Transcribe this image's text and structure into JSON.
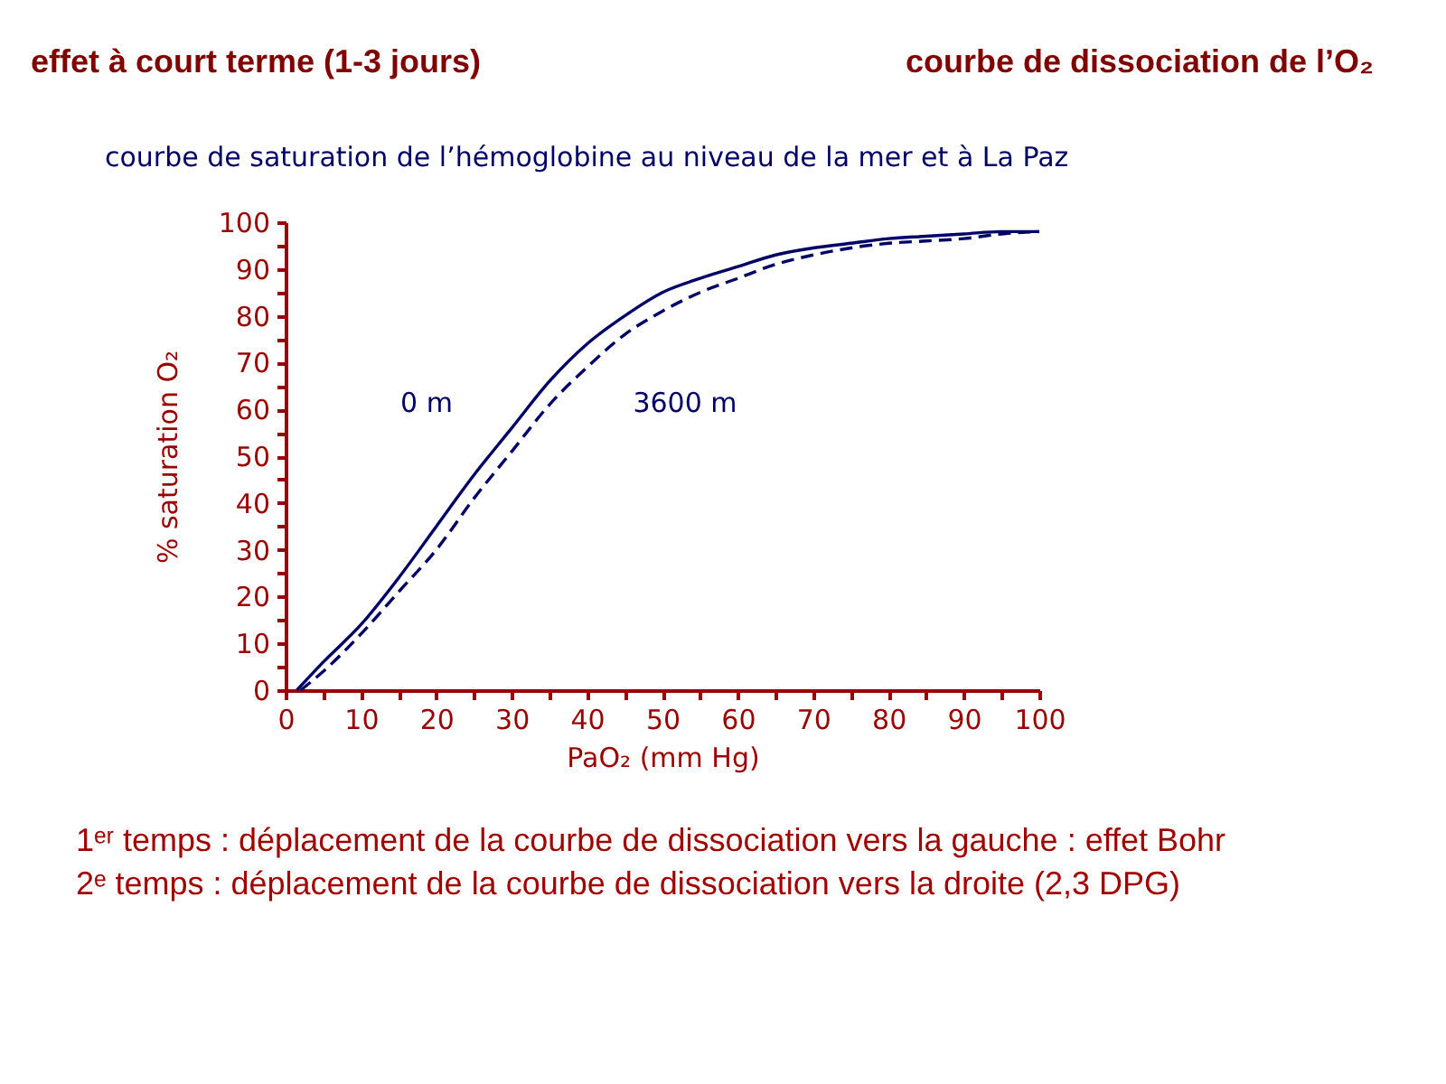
{
  "chart_data": {
    "type": "line",
    "title": "effet à court terme (1-3 jours)",
    "subtitle": "courbe de saturation de l’hémoglobine au niveau de la mer et à La Paz",
    "xlabel": "PaO₂ (mm Hg)",
    "ylabel": "% saturation O₂",
    "xlim": [
      0,
      100
    ],
    "ylim": [
      0,
      100
    ],
    "xticks": [
      0,
      {
        "value": 5,
        "label": null
      },
      10,
      {
        "value": 15,
        "label": null
      },
      20,
      {
        "value": 25,
        "label": null
      },
      30,
      {
        "value": 35,
        "label": null
      },
      40,
      {
        "value": 45,
        "label": null
      },
      50,
      {
        "value": 55,
        "label": null
      },
      60,
      {
        "value": 65,
        "label": null
      },
      70,
      {
        "value": 75,
        "label": null
      },
      80,
      {
        "value": 85,
        "label": null
      },
      90,
      {
        "value": 95,
        "label": null
      },
      100
    ],
    "yticks": [
      0,
      {
        "value": 5,
        "label": null
      },
      10,
      {
        "value": 15,
        "label": null
      },
      20,
      {
        "value": 25,
        "label": null
      },
      30,
      {
        "value": 35,
        "label": null
      },
      40,
      {
        "value": 45,
        "label": null
      },
      50,
      {
        "value": 55,
        "label": null
      },
      60,
      {
        "value": 65,
        "label": null
      },
      70,
      {
        "value": 75,
        "label": null
      },
      80,
      {
        "value": 85,
        "label": null
      },
      90,
      {
        "value": 95,
        "label": null
      },
      100
    ],
    "series": [
      {
        "color": "#000066",
        "line_style": "solid",
        "x": [
          1.5,
          5,
          10,
          15,
          20,
          25,
          30,
          35,
          40,
          45,
          50,
          55,
          60,
          65,
          70,
          75,
          80,
          85,
          90,
          95,
          100
        ],
        "values": [
          0,
          6,
          14,
          24,
          35,
          46,
          56,
          66,
          74,
          80,
          85,
          88,
          90.5,
          93,
          94.5,
          95.5,
          96.5,
          97,
          97.5,
          98,
          98
        ]
      },
      {
        "color": "#000066",
        "line_style": "dashed",
        "x": [
          2,
          5,
          10,
          15,
          20,
          25,
          30,
          35,
          40,
          45,
          50,
          55,
          60,
          65,
          70,
          75,
          80,
          85,
          90,
          95,
          100
        ],
        "values": [
          0,
          4,
          12,
          21,
          30,
          41,
          51,
          61,
          69,
          76,
          81,
          85,
          88,
          91,
          93,
          94.5,
          95.5,
          96,
          96.5,
          97.5,
          98
        ]
      }
    ],
    "annotations": [
      "courbe de dissociation de l’O₂",
      "0 m",
      "3600 m",
      "1ᵉʳ temps : déplacement de la courbe de dissociation vers la gauche : effet Bohr",
      "2ᵉ temps : déplacement de la courbe de dissociation vers la droite (2,3 DPG)"
    ]
  }
}
